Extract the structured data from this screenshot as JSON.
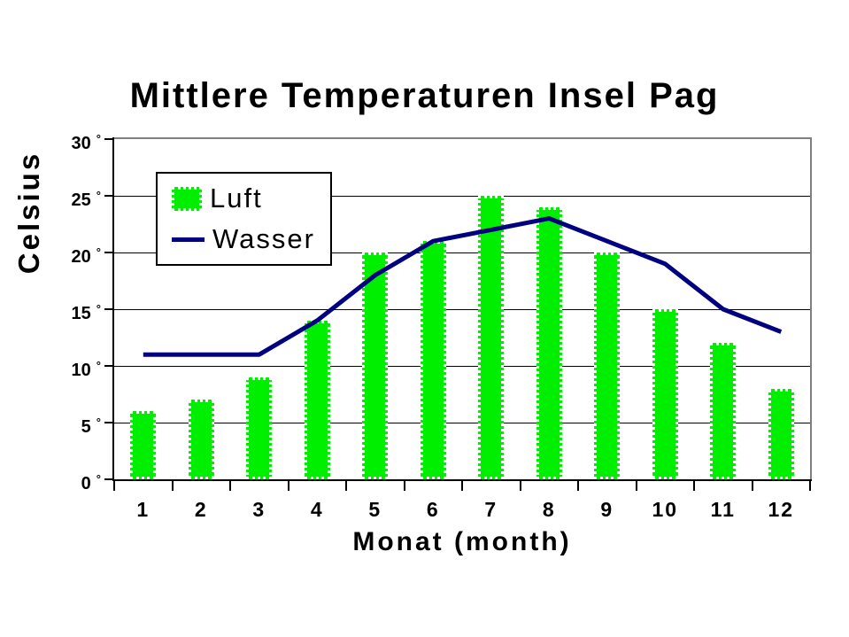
{
  "chart_data": {
    "type": "combo",
    "title": "Mittlere Temperaturen Insel Pag",
    "xlabel": "Monat (month)",
    "ylabel": "Celsius",
    "categories": [
      "1",
      "2",
      "3",
      "4",
      "5",
      "6",
      "7",
      "8",
      "9",
      "10",
      "11",
      "12"
    ],
    "series": [
      {
        "name": "Luft",
        "type": "bar",
        "color": "#00EE00",
        "values": [
          6,
          7,
          9,
          14,
          20,
          21,
          25,
          24,
          20,
          15,
          12,
          8
        ]
      },
      {
        "name": "Wasser",
        "type": "line",
        "color": "#000080",
        "values": [
          11,
          11,
          11,
          14,
          18,
          21,
          22,
          23,
          21,
          19,
          15,
          13
        ]
      }
    ],
    "ylim": [
      0,
      30
    ],
    "ytick_step": 5,
    "grid": true,
    "legend_position": "upper-left-inside"
  },
  "y_axis": {
    "tick_labels": [
      "30",
      "25",
      "20",
      "15",
      "10",
      "5",
      "0"
    ],
    "degree_symbol": "°"
  },
  "colors": {
    "bar_fill": "#00EE00",
    "bar_border_dots": "#FFFFFF",
    "line": "#000080",
    "grid": "#000000",
    "axis": "#000000",
    "frame": "#808080",
    "background": "#FFFFFF",
    "text": "#000000"
  }
}
